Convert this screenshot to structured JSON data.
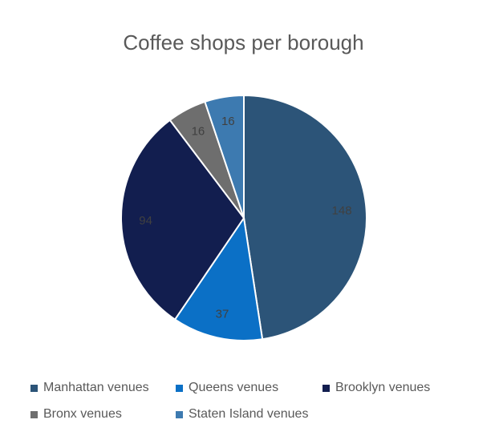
{
  "chart_data": {
    "type": "pie",
    "title": "Coffee shops per borough",
    "categories": [
      "Manhattan venues",
      "Queens venues",
      "Brooklyn venues",
      "Bronx venues",
      "Staten Island venues"
    ],
    "values": [
      148,
      37,
      94,
      16,
      16
    ],
    "colors": [
      "#2c5478",
      "#0b70c6",
      "#121e4f",
      "#6e6e6e",
      "#3d7ab0"
    ],
    "data_labels": [
      "148",
      "37",
      "94",
      "16",
      "16"
    ],
    "legend_position": "bottom",
    "start_angle_deg": 0,
    "direction": "clockwise"
  }
}
